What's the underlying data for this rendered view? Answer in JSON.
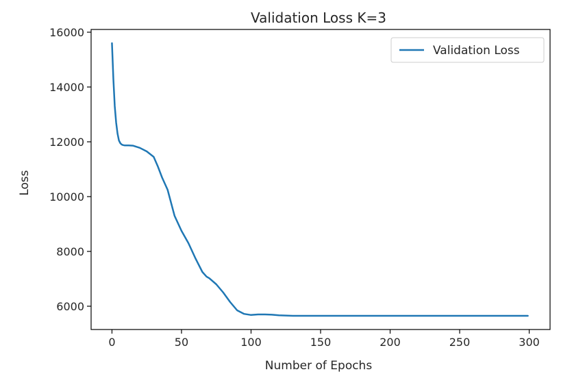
{
  "chart_data": {
    "type": "line",
    "title": "Validation Loss K=3",
    "xlabel": "Number of Epochs",
    "ylabel": "Loss",
    "xlim": [
      -15,
      315
    ],
    "ylim": [
      5150,
      16100
    ],
    "xticks": [
      0,
      50,
      100,
      150,
      200,
      250,
      300
    ],
    "yticks": [
      6000,
      8000,
      10000,
      12000,
      14000,
      16000
    ],
    "xtick_labels": [
      "0",
      "50",
      "100",
      "150",
      "200",
      "250",
      "300"
    ],
    "ytick_labels": [
      "6000",
      "8000",
      "10000",
      "12000",
      "14000",
      "16000"
    ],
    "grid": false,
    "legend_position": "upper right",
    "series": [
      {
        "name": "Validation Loss",
        "color": "#1f77b4",
        "x": [
          0,
          1,
          2,
          3,
          4,
          5,
          6,
          7,
          8,
          9,
          10,
          12,
          15,
          20,
          25,
          30,
          33,
          36,
          40,
          45,
          50,
          55,
          60,
          65,
          68,
          70,
          75,
          80,
          85,
          90,
          95,
          100,
          105,
          110,
          115,
          120,
          125,
          130,
          140,
          150,
          175,
          200,
          225,
          250,
          275,
          299
        ],
        "y": [
          15600,
          14300,
          13300,
          12700,
          12300,
          12050,
          11950,
          11900,
          11880,
          11870,
          11870,
          11870,
          11860,
          11780,
          11650,
          11450,
          11100,
          10700,
          10250,
          9300,
          8750,
          8300,
          7750,
          7250,
          7080,
          7020,
          6800,
          6500,
          6150,
          5850,
          5720,
          5680,
          5700,
          5700,
          5690,
          5670,
          5660,
          5650,
          5650,
          5650,
          5650,
          5650,
          5650,
          5650,
          5650,
          5650
        ]
      }
    ]
  }
}
